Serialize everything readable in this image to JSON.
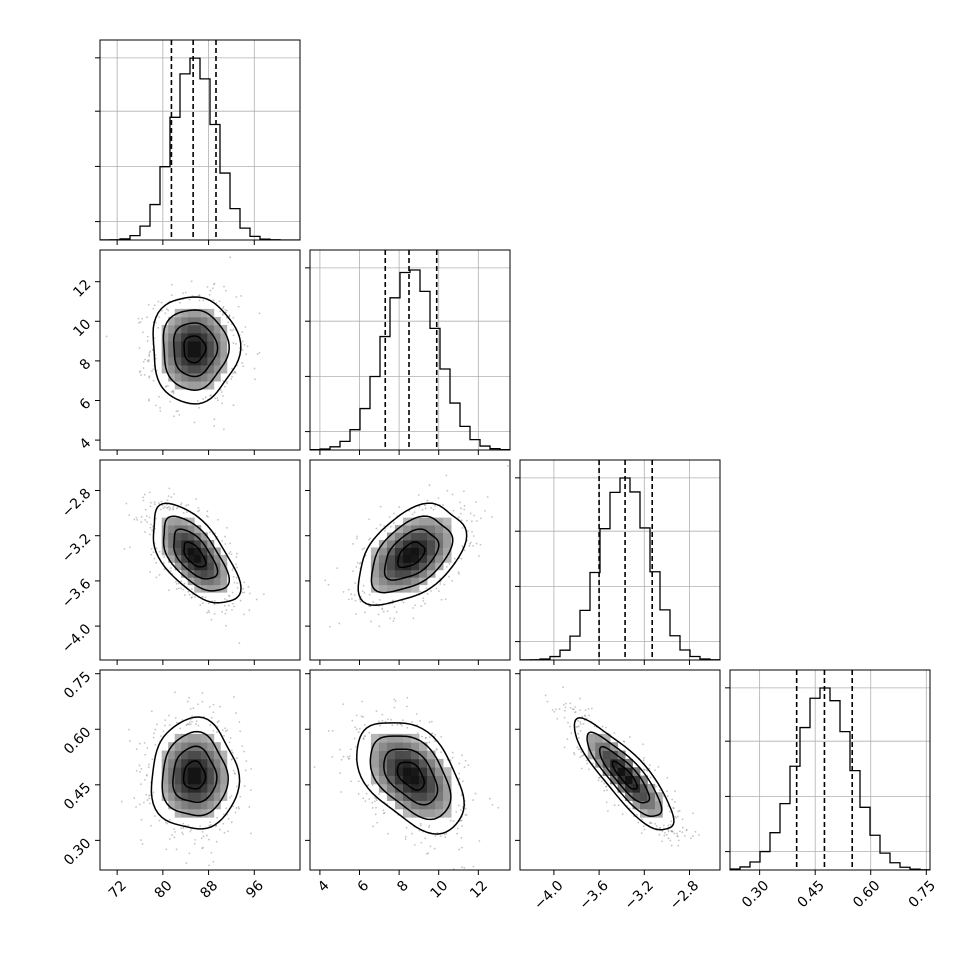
{
  "chart_data": {
    "type": "corner",
    "grid": true,
    "parameters": [
      {
        "mean": 85.5,
        "std": 3.8,
        "range": [
          69,
          104
        ],
        "ticks": [
          72,
          80,
          88,
          96
        ],
        "tick_labels": [
          "72",
          "80",
          "88",
          "96"
        ],
        "quantiles": [
          81.5,
          85.3,
          89.3
        ]
      },
      {
        "mean": 8.6,
        "std": 1.35,
        "range": [
          3.5,
          13.6
        ],
        "ticks": [
          4,
          6,
          8,
          10,
          12
        ],
        "tick_labels": [
          "4",
          "6",
          "8",
          "10",
          "12"
        ],
        "quantiles": [
          7.3,
          8.5,
          9.9
        ]
      },
      {
        "mean": -3.37,
        "std": 0.22,
        "range": [
          -4.3,
          -2.53
        ],
        "ticks": [
          -4.0,
          -3.6,
          -3.2,
          -2.8
        ],
        "tick_labels": [
          "−4.0",
          "−3.6",
          "−3.2",
          "−2.8"
        ],
        "quantiles": [
          -3.6,
          -3.37,
          -3.13
        ]
      },
      {
        "mean": 0.475,
        "std": 0.075,
        "range": [
          0.22,
          0.76
        ],
        "ticks": [
          0.3,
          0.45,
          0.6,
          0.75
        ],
        "tick_labels": [
          "0.30",
          "0.45",
          "0.60",
          "0.75"
        ],
        "quantiles": [
          0.4,
          0.475,
          0.55
        ]
      }
    ],
    "correlations": [
      [
        1.0,
        0.0,
        -0.6,
        0.0
      ],
      [
        0.0,
        1.0,
        0.45,
        -0.45
      ],
      [
        -0.6,
        0.45,
        1.0,
        -0.85
      ],
      [
        0.0,
        -0.45,
        -0.85,
        1.0
      ]
    ],
    "contour_levels_sigma": [
      0.5,
      1.0,
      1.5,
      2.0
    ],
    "histogram_bins": 20,
    "colors": {
      "line": "#000000",
      "scatter": "#8a8a8a",
      "grid": "#b0b0b0"
    }
  }
}
